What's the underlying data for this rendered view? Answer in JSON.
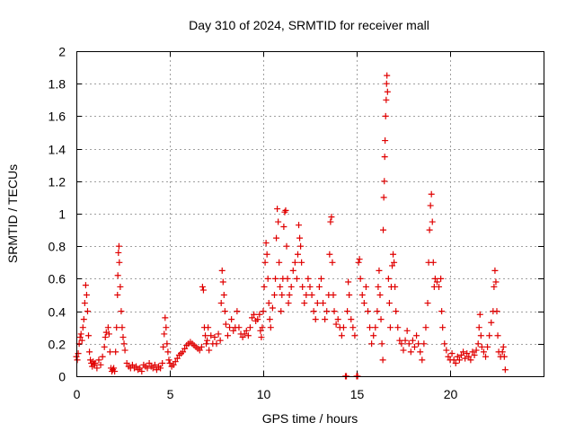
{
  "chart_data": {
    "type": "scatter",
    "title": "Day 310 of 2024, SRMTID for receiver mall",
    "xlabel": "GPS time / hours",
    "ylabel": "SRMTID / TECUs",
    "xlim": [
      0,
      25
    ],
    "ylim": [
      0,
      2
    ],
    "xticks": [
      0,
      5,
      10,
      15,
      20
    ],
    "xtick_labels": [
      "0",
      "5",
      "10",
      "15",
      "20"
    ],
    "yticks": [
      0,
      0.2,
      0.4,
      0.6,
      0.8,
      1,
      1.2,
      1.4,
      1.6,
      1.8,
      2
    ],
    "ytick_labels": [
      "0",
      "0.2",
      "0.4",
      "0.6",
      "0.8",
      "1",
      "1.2",
      "1.4",
      "1.6",
      "1.8",
      "2"
    ],
    "grid": true,
    "marker": "+",
    "series": [
      {
        "name": "SRMTID",
        "color": "#e00000",
        "points": [
          [
            0.0,
            0.12
          ],
          [
            0.05,
            0.1
          ],
          [
            0.1,
            0.14
          ],
          [
            0.15,
            0.2
          ],
          [
            0.2,
            0.24
          ],
          [
            0.25,
            0.26
          ],
          [
            0.3,
            0.22
          ],
          [
            0.35,
            0.3
          ],
          [
            0.4,
            0.35
          ],
          [
            0.45,
            0.45
          ],
          [
            0.5,
            0.56
          ],
          [
            0.55,
            0.5
          ],
          [
            0.6,
            0.4
          ],
          [
            0.65,
            0.25
          ],
          [
            0.7,
            0.15
          ],
          [
            0.75,
            0.1
          ],
          [
            0.8,
            0.08
          ],
          [
            0.85,
            0.06
          ],
          [
            0.9,
            0.09
          ],
          [
            0.95,
            0.07
          ],
          [
            1.0,
            0.08
          ],
          [
            1.1,
            0.05
          ],
          [
            1.2,
            0.1
          ],
          [
            1.3,
            0.07
          ],
          [
            1.4,
            0.12
          ],
          [
            1.5,
            0.18
          ],
          [
            1.55,
            0.24
          ],
          [
            1.6,
            0.27
          ],
          [
            1.7,
            0.3
          ],
          [
            1.75,
            0.26
          ],
          [
            1.8,
            0.15
          ],
          [
            1.85,
            0.05
          ],
          [
            1.9,
            0.03
          ],
          [
            1.95,
            0.04
          ],
          [
            2.0,
            0.05
          ],
          [
            2.05,
            0.03
          ],
          [
            2.1,
            0.15
          ],
          [
            2.15,
            0.3
          ],
          [
            2.2,
            0.5
          ],
          [
            2.22,
            0.62
          ],
          [
            2.25,
            0.76
          ],
          [
            2.28,
            0.8
          ],
          [
            2.3,
            0.7
          ],
          [
            2.35,
            0.55
          ],
          [
            2.4,
            0.4
          ],
          [
            2.45,
            0.3
          ],
          [
            2.5,
            0.24
          ],
          [
            2.55,
            0.2
          ],
          [
            2.6,
            0.16
          ],
          [
            2.7,
            0.08
          ],
          [
            2.8,
            0.06
          ],
          [
            2.9,
            0.05
          ],
          [
            3.0,
            0.07
          ],
          [
            3.1,
            0.05
          ],
          [
            3.2,
            0.06
          ],
          [
            3.3,
            0.04
          ],
          [
            3.4,
            0.05
          ],
          [
            3.5,
            0.03
          ],
          [
            3.6,
            0.07
          ],
          [
            3.7,
            0.06
          ],
          [
            3.8,
            0.05
          ],
          [
            3.9,
            0.08
          ],
          [
            4.0,
            0.06
          ],
          [
            4.1,
            0.05
          ],
          [
            4.2,
            0.07
          ],
          [
            4.3,
            0.04
          ],
          [
            4.4,
            0.06
          ],
          [
            4.5,
            0.05
          ],
          [
            4.6,
            0.08
          ],
          [
            4.65,
            0.18
          ],
          [
            4.7,
            0.26
          ],
          [
            4.75,
            0.36
          ],
          [
            4.8,
            0.3
          ],
          [
            4.85,
            0.2
          ],
          [
            4.9,
            0.15
          ],
          [
            4.95,
            0.1
          ],
          [
            5.0,
            0.08
          ],
          [
            5.1,
            0.06
          ],
          [
            5.2,
            0.07
          ],
          [
            5.3,
            0.09
          ],
          [
            5.4,
            0.11
          ],
          [
            5.5,
            0.13
          ],
          [
            5.6,
            0.14
          ],
          [
            5.7,
            0.15
          ],
          [
            5.8,
            0.17
          ],
          [
            5.9,
            0.19
          ],
          [
            6.0,
            0.2
          ],
          [
            6.1,
            0.21
          ],
          [
            6.2,
            0.2
          ],
          [
            6.3,
            0.19
          ],
          [
            6.4,
            0.18
          ],
          [
            6.5,
            0.17
          ],
          [
            6.6,
            0.16
          ],
          [
            6.7,
            0.18
          ],
          [
            6.75,
            0.55
          ],
          [
            6.8,
            0.53
          ],
          [
            6.85,
            0.3
          ],
          [
            6.9,
            0.25
          ],
          [
            6.95,
            0.2
          ],
          [
            7.0,
            0.22
          ],
          [
            7.05,
            0.3
          ],
          [
            7.1,
            0.16
          ],
          [
            7.2,
            0.25
          ],
          [
            7.3,
            0.2
          ],
          [
            7.4,
            0.24
          ],
          [
            7.5,
            0.2
          ],
          [
            7.6,
            0.26
          ],
          [
            7.7,
            0.22
          ],
          [
            7.75,
            0.45
          ],
          [
            7.8,
            0.65
          ],
          [
            7.85,
            0.58
          ],
          [
            7.9,
            0.5
          ],
          [
            7.95,
            0.4
          ],
          [
            8.0,
            0.32
          ],
          [
            8.1,
            0.25
          ],
          [
            8.2,
            0.3
          ],
          [
            8.3,
            0.35
          ],
          [
            8.4,
            0.28
          ],
          [
            8.5,
            0.3
          ],
          [
            8.6,
            0.4
          ],
          [
            8.7,
            0.3
          ],
          [
            8.8,
            0.26
          ],
          [
            8.9,
            0.24
          ],
          [
            9.0,
            0.26
          ],
          [
            9.1,
            0.28
          ],
          [
            9.2,
            0.25
          ],
          [
            9.3,
            0.3
          ],
          [
            9.4,
            0.36
          ],
          [
            9.5,
            0.38
          ],
          [
            9.6,
            0.34
          ],
          [
            9.7,
            0.35
          ],
          [
            9.8,
            0.38
          ],
          [
            9.85,
            0.28
          ],
          [
            9.9,
            0.24
          ],
          [
            9.95,
            0.3
          ],
          [
            10.0,
            0.4
          ],
          [
            10.05,
            0.55
          ],
          [
            10.1,
            0.7
          ],
          [
            10.15,
            0.82
          ],
          [
            10.2,
            0.75
          ],
          [
            10.25,
            0.6
          ],
          [
            10.3,
            0.45
          ],
          [
            10.35,
            0.35
          ],
          [
            10.4,
            0.3
          ],
          [
            10.5,
            0.42
          ],
          [
            10.6,
            0.5
          ],
          [
            10.65,
            0.6
          ],
          [
            10.7,
            0.85
          ],
          [
            10.75,
            1.03
          ],
          [
            10.8,
            0.95
          ],
          [
            10.85,
            0.7
          ],
          [
            10.9,
            0.55
          ],
          [
            10.95,
            0.4
          ],
          [
            11.0,
            0.5
          ],
          [
            11.05,
            0.6
          ],
          [
            11.1,
            0.92
          ],
          [
            11.15,
            1.01
          ],
          [
            11.2,
            1.02
          ],
          [
            11.25,
            0.8
          ],
          [
            11.3,
            0.6
          ],
          [
            11.35,
            0.45
          ],
          [
            11.4,
            0.5
          ],
          [
            11.5,
            0.55
          ],
          [
            11.6,
            0.65
          ],
          [
            11.7,
            0.7
          ],
          [
            11.8,
            0.6
          ],
          [
            11.85,
            0.75
          ],
          [
            11.9,
            0.93
          ],
          [
            11.95,
            0.85
          ],
          [
            12.0,
            0.8
          ],
          [
            12.05,
            0.7
          ],
          [
            12.1,
            0.55
          ],
          [
            12.2,
            0.45
          ],
          [
            12.3,
            0.5
          ],
          [
            12.4,
            0.6
          ],
          [
            12.5,
            0.55
          ],
          [
            12.6,
            0.5
          ],
          [
            12.7,
            0.4
          ],
          [
            12.8,
            0.35
          ],
          [
            12.9,
            0.45
          ],
          [
            13.0,
            0.55
          ],
          [
            13.1,
            0.6
          ],
          [
            13.2,
            0.45
          ],
          [
            13.3,
            0.35
          ],
          [
            13.4,
            0.4
          ],
          [
            13.5,
            0.5
          ],
          [
            13.55,
            0.75
          ],
          [
            13.6,
            0.95
          ],
          [
            13.65,
            0.98
          ],
          [
            13.7,
            0.7
          ],
          [
            13.75,
            0.5
          ],
          [
            13.8,
            0.4
          ],
          [
            13.9,
            0.32
          ],
          [
            14.0,
            0.35
          ],
          [
            14.1,
            0.3
          ],
          [
            14.2,
            0.25
          ],
          [
            14.3,
            0.3
          ],
          [
            14.4,
            0.0
          ],
          [
            14.45,
            0.0
          ],
          [
            14.5,
            0.4
          ],
          [
            14.55,
            0.58
          ],
          [
            14.6,
            0.5
          ],
          [
            14.7,
            0.35
          ],
          [
            14.8,
            0.3
          ],
          [
            14.9,
            0.25
          ],
          [
            15.0,
            0.0
          ],
          [
            15.05,
            0.0
          ],
          [
            15.1,
            0.7
          ],
          [
            15.15,
            0.72
          ],
          [
            15.2,
            0.6
          ],
          [
            15.3,
            0.5
          ],
          [
            15.4,
            0.45
          ],
          [
            15.5,
            0.55
          ],
          [
            15.6,
            0.4
          ],
          [
            15.7,
            0.3
          ],
          [
            15.8,
            0.2
          ],
          [
            15.9,
            0.25
          ],
          [
            16.0,
            0.3
          ],
          [
            16.1,
            0.4
          ],
          [
            16.15,
            0.55
          ],
          [
            16.2,
            0.65
          ],
          [
            16.25,
            0.5
          ],
          [
            16.3,
            0.35
          ],
          [
            16.35,
            0.2
          ],
          [
            16.4,
            0.1
          ],
          [
            16.42,
            0.9
          ],
          [
            16.45,
            1.1
          ],
          [
            16.48,
            1.2
          ],
          [
            16.5,
            1.35
          ],
          [
            16.52,
            1.45
          ],
          [
            16.55,
            1.6
          ],
          [
            16.58,
            1.7
          ],
          [
            16.6,
            1.8
          ],
          [
            16.62,
            1.85
          ],
          [
            16.65,
            1.75
          ],
          [
            16.7,
            0.6
          ],
          [
            16.75,
            0.45
          ],
          [
            16.8,
            0.3
          ],
          [
            16.85,
            0.55
          ],
          [
            16.9,
            0.68
          ],
          [
            16.95,
            0.75
          ],
          [
            17.0,
            0.7
          ],
          [
            17.05,
            0.55
          ],
          [
            17.1,
            0.4
          ],
          [
            17.2,
            0.3
          ],
          [
            17.3,
            0.22
          ],
          [
            17.4,
            0.2
          ],
          [
            17.5,
            0.16
          ],
          [
            17.6,
            0.22
          ],
          [
            17.7,
            0.28
          ],
          [
            17.8,
            0.2
          ],
          [
            17.9,
            0.15
          ],
          [
            18.0,
            0.22
          ],
          [
            18.1,
            0.18
          ],
          [
            18.2,
            0.25
          ],
          [
            18.3,
            0.2
          ],
          [
            18.4,
            0.15
          ],
          [
            18.5,
            0.1
          ],
          [
            18.6,
            0.2
          ],
          [
            18.7,
            0.3
          ],
          [
            18.8,
            0.45
          ],
          [
            18.85,
            0.7
          ],
          [
            18.9,
            0.9
          ],
          [
            18.95,
            1.05
          ],
          [
            19.0,
            1.12
          ],
          [
            19.05,
            0.95
          ],
          [
            19.1,
            0.7
          ],
          [
            19.15,
            0.55
          ],
          [
            19.2,
            0.6
          ],
          [
            19.3,
            0.58
          ],
          [
            19.4,
            0.55
          ],
          [
            19.5,
            0.6
          ],
          [
            19.55,
            0.4
          ],
          [
            19.6,
            0.3
          ],
          [
            19.7,
            0.2
          ],
          [
            19.8,
            0.16
          ],
          [
            19.9,
            0.12
          ],
          [
            20.0,
            0.1
          ],
          [
            20.1,
            0.14
          ],
          [
            20.2,
            0.1
          ],
          [
            20.3,
            0.08
          ],
          [
            20.4,
            0.12
          ],
          [
            20.5,
            0.1
          ],
          [
            20.6,
            0.13
          ],
          [
            20.7,
            0.15
          ],
          [
            20.8,
            0.11
          ],
          [
            20.9,
            0.14
          ],
          [
            21.0,
            0.12
          ],
          [
            21.1,
            0.1
          ],
          [
            21.2,
            0.15
          ],
          [
            21.3,
            0.13
          ],
          [
            21.4,
            0.16
          ],
          [
            21.5,
            0.2
          ],
          [
            21.55,
            0.3
          ],
          [
            21.6,
            0.38
          ],
          [
            21.65,
            0.25
          ],
          [
            21.7,
            0.18
          ],
          [
            21.8,
            0.15
          ],
          [
            21.9,
            0.12
          ],
          [
            22.0,
            0.18
          ],
          [
            22.1,
            0.25
          ],
          [
            22.2,
            0.33
          ],
          [
            22.3,
            0.4
          ],
          [
            22.35,
            0.55
          ],
          [
            22.4,
            0.65
          ],
          [
            22.45,
            0.58
          ],
          [
            22.5,
            0.4
          ],
          [
            22.55,
            0.25
          ],
          [
            22.6,
            0.15
          ],
          [
            22.7,
            0.12
          ],
          [
            22.8,
            0.15
          ],
          [
            22.85,
            0.18
          ],
          [
            22.9,
            0.12
          ],
          [
            22.95,
            0.04
          ]
        ]
      }
    ]
  }
}
